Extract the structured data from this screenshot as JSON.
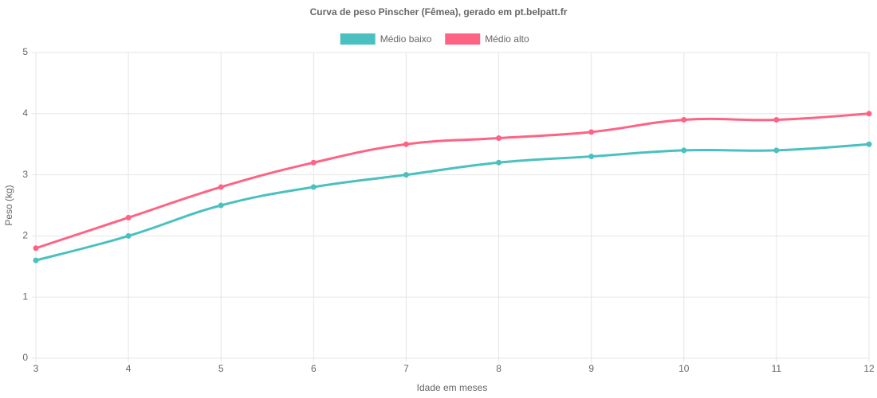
{
  "chart_data": {
    "type": "line",
    "title": "Curva de peso Pinscher (Fêmea), gerado em pt.belpatt.fr",
    "x_label": "Idade em meses",
    "y_label": "Peso (kg)",
    "x": [
      3,
      4,
      5,
      6,
      7,
      8,
      9,
      10,
      11,
      12
    ],
    "series": [
      {
        "name": "Médio baixo",
        "color": "#4bc0c0",
        "values": [
          1.6,
          2.0,
          2.5,
          2.8,
          3.0,
          3.2,
          3.3,
          3.4,
          3.4,
          3.5
        ]
      },
      {
        "name": "Médio alto",
        "color": "#ff6384",
        "values": [
          1.8,
          2.3,
          2.8,
          3.2,
          3.5,
          3.6,
          3.7,
          3.9,
          3.9,
          4.0
        ]
      }
    ],
    "xlim": [
      3,
      12
    ],
    "xticks": [
      3,
      4,
      5,
      6,
      7,
      8,
      9,
      10,
      11,
      12
    ],
    "ylim": [
      0,
      5
    ],
    "yticks": [
      0,
      1,
      2,
      3,
      4,
      5
    ],
    "grid": true,
    "legend": "top"
  }
}
